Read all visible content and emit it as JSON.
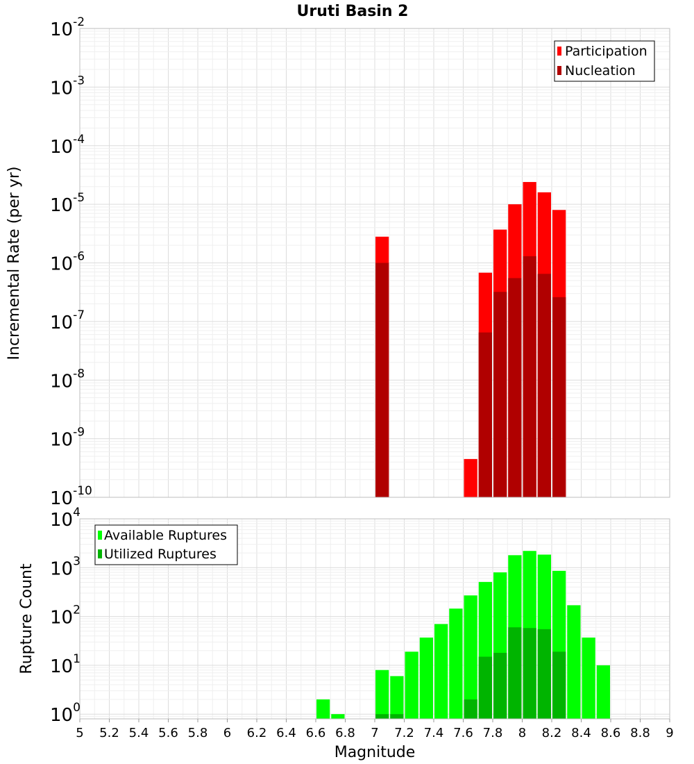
{
  "chart_data": [
    {
      "type": "bar",
      "title": "Uruti Basin 2",
      "ylabel": "Incremental Rate (per yr)",
      "yscale": "log",
      "ylim": [
        1e-10,
        0.01
      ],
      "xlim": [
        5,
        9
      ],
      "bar_width": 0.1,
      "legend_position": "top-right",
      "grid": true,
      "y_ticks": [
        {
          "base": "10",
          "exp": "-10",
          "value": 1e-10
        },
        {
          "base": "10",
          "exp": "-9",
          "value": 1e-09
        },
        {
          "base": "10",
          "exp": "-8",
          "value": 1e-08
        },
        {
          "base": "10",
          "exp": "-7",
          "value": 1e-07
        },
        {
          "base": "10",
          "exp": "-6",
          "value": 1e-06
        },
        {
          "base": "10",
          "exp": "-5",
          "value": 1e-05
        },
        {
          "base": "10",
          "exp": "-4",
          "value": 0.0001
        },
        {
          "base": "10",
          "exp": "-3",
          "value": 0.001
        },
        {
          "base": "10",
          "exp": "-2",
          "value": 0.01
        }
      ],
      "series": [
        {
          "name": "Participation",
          "color": "#ff0000",
          "x": [
            7.05,
            7.65,
            7.75,
            7.85,
            7.95,
            8.05,
            8.15,
            8.25
          ],
          "values": [
            2.8e-06,
            4.5e-10,
            6.8e-07,
            3.7e-06,
            1e-05,
            2.4e-05,
            1.6e-05,
            8e-06
          ]
        },
        {
          "name": "Nucleation",
          "color": "#b00000",
          "x": [
            7.05,
            7.75,
            7.85,
            7.95,
            8.05,
            8.15,
            8.25
          ],
          "values": [
            1e-06,
            6.5e-08,
            3.2e-07,
            5.5e-07,
            1.3e-06,
            6.5e-07,
            2.6e-07
          ]
        }
      ]
    },
    {
      "type": "bar",
      "ylabel": "Rupture Count",
      "xlabel": "Magnitude",
      "yscale": "log",
      "ylim": [
        0.8,
        10000
      ],
      "xlim": [
        5,
        9
      ],
      "bar_width": 0.1,
      "legend_position": "top-left",
      "grid": true,
      "x_ticks": [
        "5",
        "5.2",
        "5.4",
        "5.6",
        "5.8",
        "6",
        "6.2",
        "6.4",
        "6.6",
        "6.8",
        "7",
        "7.2",
        "7.4",
        "7.6",
        "7.8",
        "8",
        "8.2",
        "8.4",
        "8.6",
        "8.8",
        "9"
      ],
      "y_ticks": [
        {
          "base": "10",
          "exp": "0",
          "value": 1
        },
        {
          "base": "10",
          "exp": "1",
          "value": 10
        },
        {
          "base": "10",
          "exp": "2",
          "value": 100
        },
        {
          "base": "10",
          "exp": "3",
          "value": 1000
        },
        {
          "base": "10",
          "exp": "4",
          "value": 10000
        }
      ],
      "series": [
        {
          "name": "Available Ruptures",
          "color": "#00ff00",
          "x": [
            6.65,
            6.75,
            7.05,
            7.15,
            7.25,
            7.35,
            7.45,
            7.55,
            7.65,
            7.75,
            7.85,
            7.95,
            8.05,
            8.15,
            8.25,
            8.35,
            8.45,
            8.55
          ],
          "values": [
            2,
            1,
            8,
            6,
            19,
            37,
            70,
            145,
            270,
            510,
            800,
            1800,
            2200,
            1850,
            860,
            170,
            37,
            10
          ]
        },
        {
          "name": "Utilized Ruptures",
          "color": "#00b400",
          "x": [
            7.05,
            7.15,
            7.65,
            7.75,
            7.85,
            7.95,
            8.05,
            8.15,
            8.25
          ],
          "values": [
            1,
            1,
            2,
            15,
            18,
            60,
            58,
            55,
            19
          ]
        }
      ]
    }
  ]
}
